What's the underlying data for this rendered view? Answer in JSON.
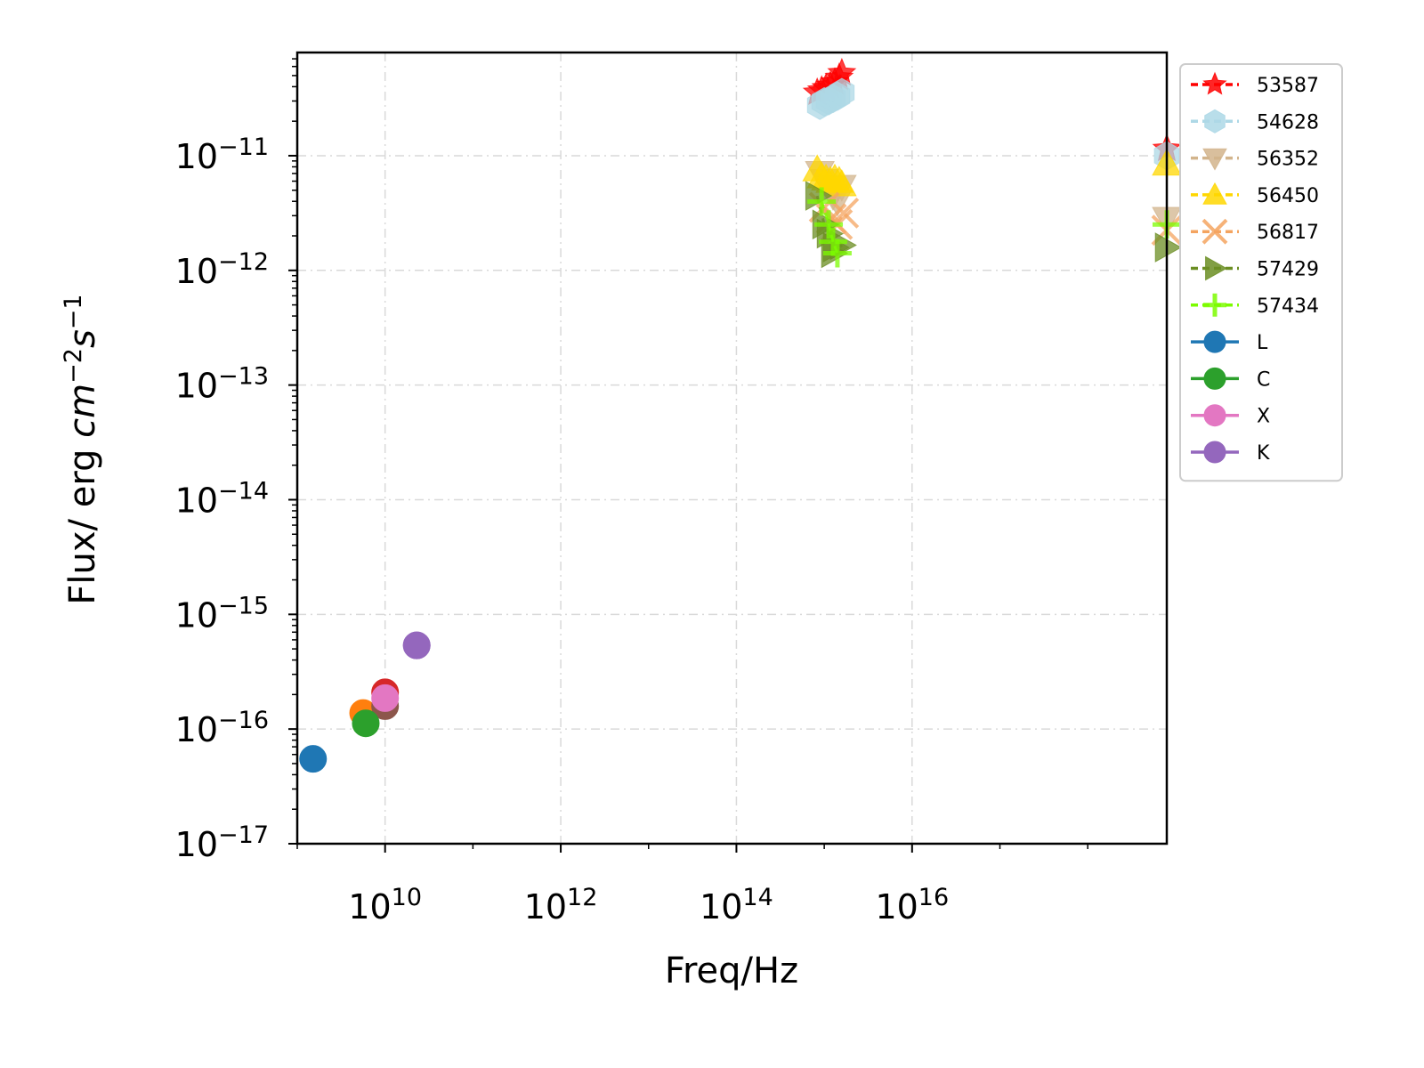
{
  "chart_data": {
    "type": "scatter",
    "title": "",
    "xlabel": "Freq/Hz",
    "ylabel": {
      "prefix": "Flux/ erg ",
      "cm": "cm",
      "cm_exp": "−2",
      "s": "s",
      "s_exp": "−1"
    },
    "x_scale": "log",
    "y_scale": "log",
    "xlim": [
      9.0,
      18.9
    ],
    "ylim": [
      -17,
      -10.1
    ],
    "x_tick_labels": [
      {
        "base": "10",
        "exp": "10"
      },
      {
        "base": "10",
        "exp": "12"
      },
      {
        "base": "10",
        "exp": "14"
      },
      {
        "base": "10",
        "exp": "16"
      }
    ],
    "y_tick_labels": [
      {
        "base": "10",
        "exp": "−11"
      },
      {
        "base": "10",
        "exp": "−12"
      },
      {
        "base": "10",
        "exp": "−13"
      },
      {
        "base": "10",
        "exp": "−14"
      },
      {
        "base": "10",
        "exp": "−15"
      },
      {
        "base": "10",
        "exp": "−16"
      },
      {
        "base": "10",
        "exp": "−17"
      }
    ],
    "grid": true,
    "legend_position": "outside-right-top",
    "series": [
      {
        "name": "53587",
        "color": "#ff0000",
        "marker": "star",
        "linestyle": "dashed",
        "points": [
          [
            14.92,
            -10.45
          ],
          [
            14.97,
            -10.43
          ],
          [
            15.02,
            -10.41
          ],
          [
            15.07,
            -10.39
          ],
          [
            15.12,
            -10.36
          ],
          [
            15.17,
            -10.32
          ],
          [
            15.2,
            -10.28
          ],
          [
            18.9,
            -10.94
          ]
        ]
      },
      {
        "name": "54628",
        "color": "#add8e6",
        "marker": "hexagon",
        "linestyle": "dashed",
        "points": [
          [
            14.95,
            -10.56
          ],
          [
            15.0,
            -10.53
          ],
          [
            15.05,
            -10.52
          ],
          [
            15.1,
            -10.5
          ],
          [
            15.15,
            -10.48
          ],
          [
            15.2,
            -10.45
          ],
          [
            18.9,
            -11.0
          ]
        ]
      },
      {
        "name": "56352",
        "color": "#d2b48c",
        "marker": "triangle-down",
        "linestyle": "dashed",
        "points": [
          [
            14.95,
            -11.15
          ],
          [
            15.0,
            -11.22
          ],
          [
            15.05,
            -11.28
          ],
          [
            15.1,
            -11.35
          ],
          [
            15.15,
            -11.4
          ],
          [
            15.2,
            -11.27
          ],
          [
            18.9,
            -11.55
          ]
        ]
      },
      {
        "name": "56450",
        "color": "#ffd700",
        "marker": "triangle-up",
        "linestyle": "dashed",
        "points": [
          [
            14.92,
            -11.12
          ],
          [
            14.97,
            -11.18
          ],
          [
            15.02,
            -11.2
          ],
          [
            15.07,
            -11.22
          ],
          [
            15.12,
            -11.2
          ],
          [
            15.17,
            -11.22
          ],
          [
            15.2,
            -11.25
          ],
          [
            18.9,
            -11.07
          ]
        ]
      },
      {
        "name": "56817",
        "color": "#f4a460",
        "marker": "x",
        "linestyle": "dashed",
        "points": [
          [
            15.0,
            -11.45
          ],
          [
            15.08,
            -11.55
          ],
          [
            15.15,
            -11.6
          ],
          [
            15.22,
            -11.5
          ],
          [
            18.9,
            -11.65
          ]
        ]
      },
      {
        "name": "57429",
        "color": "#6b8e23",
        "marker": "triangle-right",
        "linestyle": "dashed",
        "points": [
          [
            14.92,
            -11.35
          ],
          [
            15.0,
            -11.6
          ],
          [
            15.05,
            -11.68
          ],
          [
            15.12,
            -11.8
          ],
          [
            15.2,
            -11.78
          ],
          [
            15.1,
            -11.85
          ],
          [
            18.9,
            -11.8
          ]
        ]
      },
      {
        "name": "57434",
        "color": "#7cfc00",
        "marker": "plus",
        "linestyle": "dashed",
        "points": [
          [
            14.97,
            -11.4
          ],
          [
            15.05,
            -11.6
          ],
          [
            15.1,
            -11.75
          ],
          [
            15.15,
            -11.85
          ],
          [
            18.9,
            -11.6
          ]
        ]
      },
      {
        "name": "L",
        "color": "#1f77b4",
        "marker": "circle",
        "linestyle": "solid",
        "points": [
          [
            9.18,
            -16.26
          ]
        ]
      },
      {
        "name": "C",
        "color": "#2ca02c",
        "marker": "circle",
        "linestyle": "solid",
        "points": [
          [
            9.78,
            -15.95
          ]
        ]
      }
    ],
    "unlabeled_points": [
      {
        "color": "#ff7f0e",
        "x": 9.75,
        "y": -15.86
      },
      {
        "color": "#d62728",
        "x": 10.0,
        "y": -15.68
      },
      {
        "color": "#8c564b",
        "x": 10.0,
        "y": -15.8
      },
      {
        "color": "#9467bd",
        "x": 10.36,
        "y": -15.27
      }
    ],
    "extra_series": [
      {
        "name": "X",
        "color": "#e377c2",
        "marker": "circle",
        "linestyle": "solid",
        "points": [
          [
            10.0,
            -15.73
          ]
        ]
      },
      {
        "name": "K",
        "color": "#9467bd",
        "marker": "circle",
        "linestyle": "solid",
        "points": [
          [
            10.36,
            -15.27
          ]
        ]
      }
    ]
  }
}
